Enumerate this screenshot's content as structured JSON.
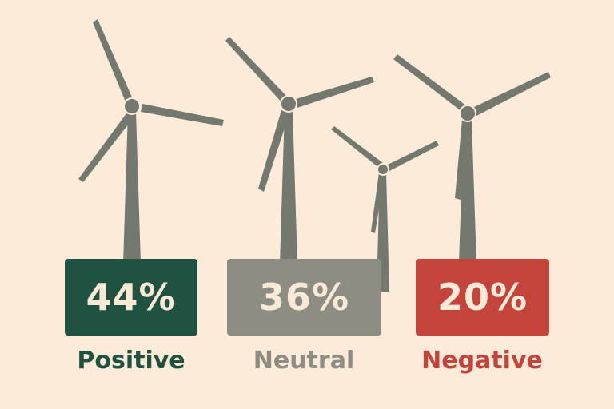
{
  "chart_data": {
    "type": "bar",
    "categories": [
      "Positive",
      "Neutral",
      "Negative"
    ],
    "values": [
      44,
      36,
      20
    ],
    "value_labels": [
      "44%",
      "36%",
      "20%"
    ],
    "colors": {
      "positive": "#1f5240",
      "neutral": "#8d8d84",
      "negative": "#c4433a",
      "turbine": "#73796f",
      "background": "#fbebd8",
      "card_text": "#f8ead7"
    }
  }
}
